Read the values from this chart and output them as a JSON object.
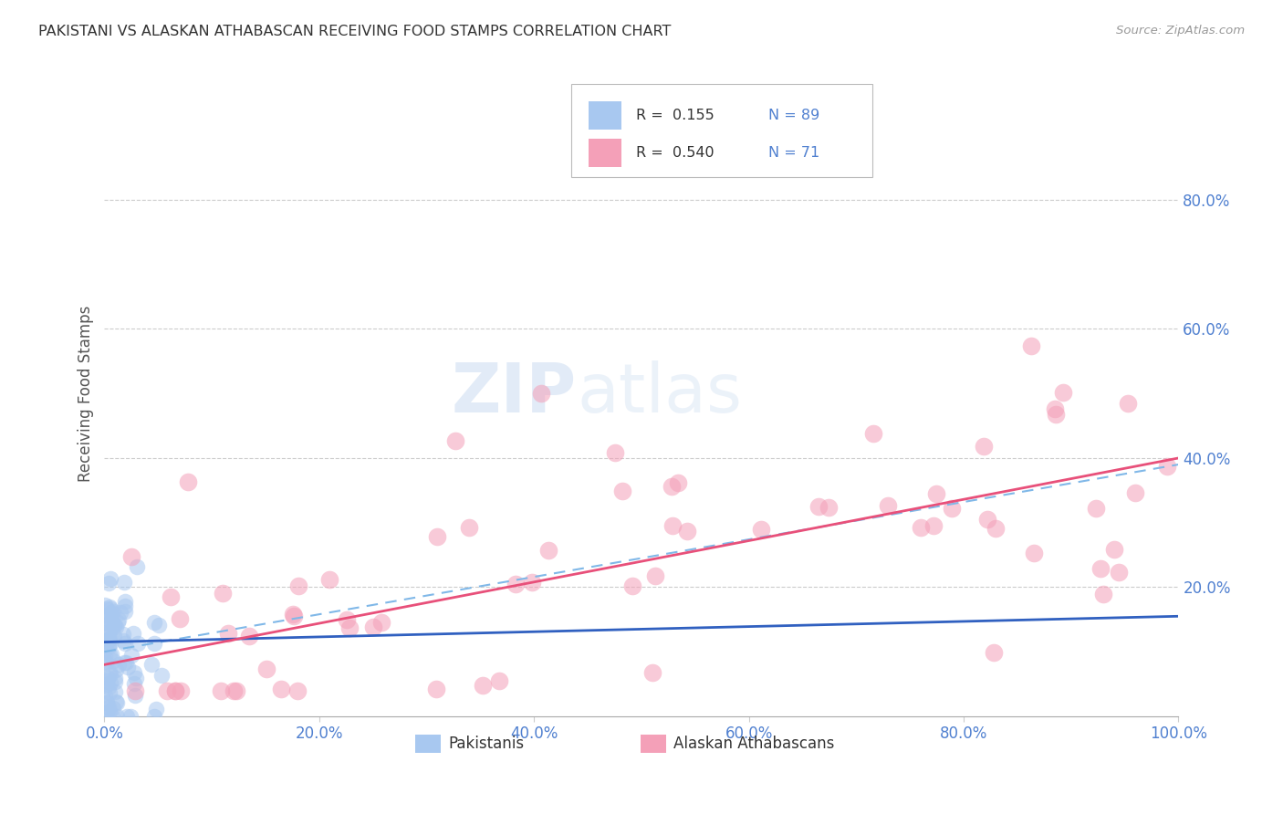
{
  "title": "PAKISTANI VS ALASKAN ATHABASCAN RECEIVING FOOD STAMPS CORRELATION CHART",
  "source": "Source: ZipAtlas.com",
  "ylabel": "Receiving Food Stamps",
  "legend_label1": "Pakistanis",
  "legend_label2": "Alaskan Athabascans",
  "legend_r1": "R =  0.155",
  "legend_n1": "N = 89",
  "legend_r2": "R =  0.540",
  "legend_n2": "N = 71",
  "color_blue": "#A8C8F0",
  "color_pink": "#F4A0B8",
  "line_blue": "#3060C0",
  "line_pink": "#E8507A",
  "line_dash": "#80B8E8",
  "watermark_zip": "ZIP",
  "watermark_atlas": "atlas",
  "background": "#ffffff",
  "grid_color": "#cccccc",
  "tick_color": "#5080D0",
  "title_color": "#333333",
  "ylabel_color": "#555555"
}
